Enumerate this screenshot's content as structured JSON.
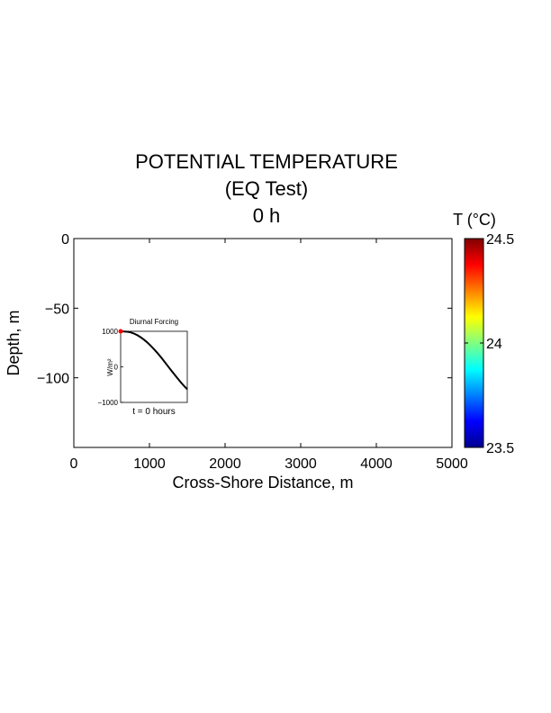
{
  "chart_data": [
    {
      "type": "heatmap",
      "title": [
        "POTENTIAL TEMPERATURE",
        "(EQ Test)",
        "0 h"
      ],
      "xlabel": "Cross-Shore Distance, m",
      "ylabel": "Depth, m",
      "xlim": [
        0,
        5000
      ],
      "ylim": [
        -150,
        0
      ],
      "xticks": [
        0,
        1000,
        2000,
        3000,
        4000,
        5000
      ],
      "xtick_labels": [
        "0",
        "1000",
        "2000",
        "3000",
        "4000",
        "5000"
      ],
      "yticks": [
        0,
        -50,
        -100
      ],
      "ytick_labels": [
        "0",
        "−50",
        "−100"
      ],
      "grid": false,
      "values": [],
      "colorbar": {
        "label": "T (°C)",
        "range": [
          23.5,
          24.5
        ],
        "ticks": [
          23.5,
          24,
          24.5
        ],
        "tick_labels": [
          "23.5",
          "24",
          "24.5"
        ],
        "colormap": "jet",
        "colors": [
          "#00008f",
          "#0000ff",
          "#0080ff",
          "#00ffff",
          "#80ff80",
          "#ffff00",
          "#ff8000",
          "#ff0000",
          "#800000"
        ]
      }
    },
    {
      "type": "line",
      "title": "Diurnal Forcing",
      "xlabel": "t = 0 hours",
      "ylabel": "W/m²",
      "xlim": [
        0,
        1
      ],
      "ylim": [
        -1000,
        1000
      ],
      "yticks": [
        1000,
        0,
        -1000
      ],
      "ytick_labels": [
        "1000",
        "0",
        "−1000"
      ],
      "series": [
        {
          "x": [
            0,
            0.05,
            0.1,
            0.15,
            0.2,
            0.25,
            0.3,
            0.35,
            0.4,
            0.45,
            0.5,
            0.55,
            0.6,
            0.65,
            0.7,
            0.75,
            0.8,
            0.85,
            0.9,
            0.95,
            1.0
          ],
          "values": [
            1000,
            996,
            988,
            969,
            936,
            890,
            833,
            764,
            685,
            597,
            500,
            395,
            283,
            165,
            43,
            -78,
            -198,
            -315,
            -428,
            -533,
            -630
          ],
          "color": "#000000"
        }
      ],
      "marker": {
        "x": 0,
        "y": 1000,
        "color": "#ff0000"
      }
    }
  ]
}
